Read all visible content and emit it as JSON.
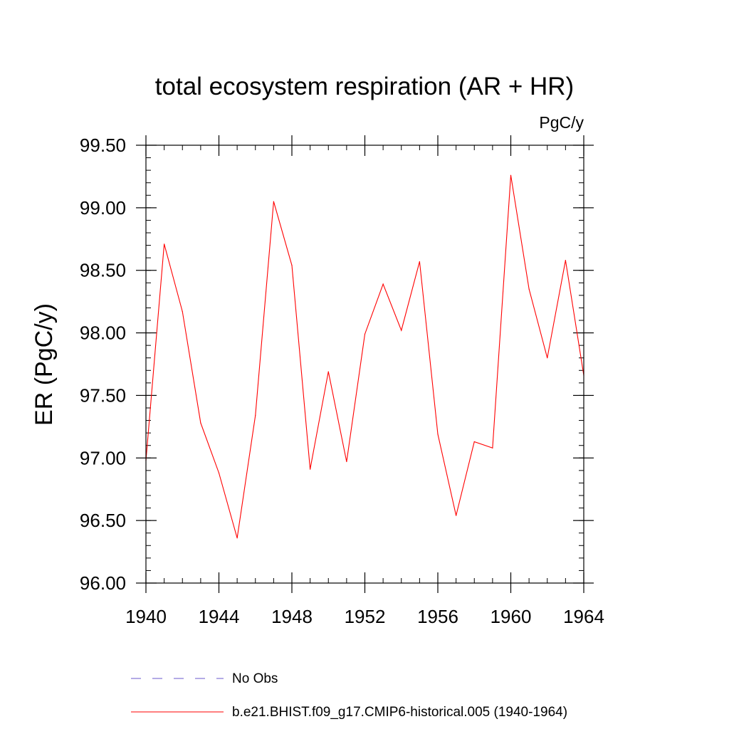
{
  "chart_data": {
    "type": "line",
    "title": "total ecosystem respiration (AR + HR)",
    "units": "PgC/y",
    "xlabel": "",
    "ylabel": "ER  (PgC/y)",
    "xlim": [
      1940,
      1964
    ],
    "ylim": [
      96.0,
      99.5
    ],
    "x_ticks": [
      1940,
      1944,
      1948,
      1952,
      1956,
      1960,
      1964
    ],
    "y_ticks": [
      "96.00",
      "96.50",
      "97.00",
      "97.50",
      "98.00",
      "98.50",
      "99.00",
      "99.50"
    ],
    "grid": false,
    "legend_position": "bottom",
    "legend": [
      {
        "name": "No Obs",
        "color": "#6a5acd",
        "dashed": true
      },
      {
        "name": "b.e21.BHIST.f09_g17.CMIP6-historical.005 (1940-1964)",
        "color": "#ff0000",
        "dashed": false
      }
    ],
    "series": [
      {
        "name": "b.e21.BHIST.f09_g17.CMIP6-historical.005 (1940-1964)",
        "color": "#ff0000",
        "x": [
          1940,
          1941,
          1942,
          1943,
          1944,
          1945,
          1946,
          1947,
          1948,
          1949,
          1950,
          1951,
          1952,
          1953,
          1954,
          1955,
          1956,
          1957,
          1958,
          1959,
          1960,
          1961,
          1962,
          1963,
          1964
        ],
        "values": [
          96.98,
          98.71,
          98.17,
          97.28,
          96.88,
          96.36,
          97.34,
          99.05,
          98.54,
          96.91,
          97.69,
          96.97,
          97.99,
          98.39,
          98.02,
          98.57,
          97.19,
          96.54,
          97.13,
          97.08,
          99.26,
          98.35,
          97.8,
          98.58,
          97.66
        ]
      }
    ]
  }
}
